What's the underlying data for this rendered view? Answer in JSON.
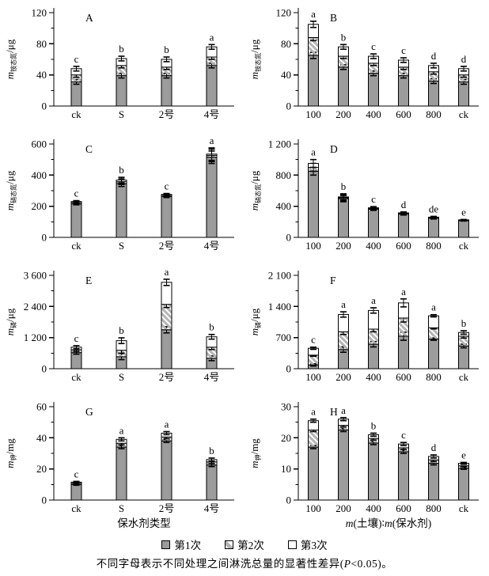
{
  "figure": {
    "colors": {
      "bar_fill": "#9c9c9c",
      "hatch_stripe": "#b4b4b4",
      "axis": "#000000",
      "background": "#ffffff"
    },
    "legend": [
      {
        "label": "第1次",
        "swatch": "solid-gray"
      },
      {
        "label": "第2次",
        "swatch": "hatched"
      },
      {
        "label": "第3次",
        "swatch": "open-white"
      }
    ],
    "caption": {
      "pre": "不同字母表示不同处理之间淋洗总量的显著性差异(",
      "italic": "P",
      "post": "<0.05)。"
    }
  },
  "chart_data": [
    {
      "id": "A",
      "type": "bar",
      "stacked": true,
      "ylabel": {
        "main": "m",
        "sub": "铵态氮",
        "unit": "/μg"
      },
      "ylim": [
        0,
        120
      ],
      "yticks": [
        {
          "v": 0,
          "label": "0"
        },
        {
          "v": 40,
          "label": "40"
        },
        {
          "v": 80,
          "label": "80"
        },
        {
          "v": 120,
          "label": "120"
        }
      ],
      "categories": [
        "ck",
        "S",
        "2号",
        "4号"
      ],
      "series": [
        {
          "name": "第1次",
          "values": [
            31,
            39,
            39,
            52
          ]
        },
        {
          "name": "第2次",
          "values": [
            9,
            13,
            11,
            11
          ]
        },
        {
          "name": "第3次",
          "values": [
            8,
            9,
            10,
            13
          ]
        }
      ],
      "totals": [
        48,
        61,
        60,
        76
      ],
      "letters": [
        "c",
        "b",
        "b",
        "a"
      ],
      "err": [
        3,
        3,
        3,
        3
      ],
      "xlabel": null
    },
    {
      "id": "B",
      "type": "bar",
      "stacked": true,
      "ylabel": {
        "main": "m",
        "sub": "铵态氮",
        "unit": "/μg"
      },
      "ylim": [
        0,
        120
      ],
      "yticks": [
        {
          "v": 0,
          "label": "0"
        },
        {
          "v": 40,
          "label": "40"
        },
        {
          "v": 80,
          "label": "80"
        },
        {
          "v": 120,
          "label": "120"
        }
      ],
      "categories": [
        "100",
        "200",
        "400",
        "600",
        "800",
        "ck"
      ],
      "series": [
        {
          "name": "第1次",
          "values": [
            65,
            50,
            42,
            39,
            32,
            31
          ]
        },
        {
          "name": "第2次",
          "values": [
            23,
            14,
            13,
            11,
            12,
            9
          ]
        },
        {
          "name": "第3次",
          "values": [
            17,
            12,
            9,
            9,
            8,
            8
          ]
        }
      ],
      "totals": [
        105,
        76,
        64,
        59,
        52,
        48
      ],
      "letters": [
        "a",
        "b",
        "c",
        "c",
        "d",
        "d"
      ],
      "err": [
        4,
        3,
        3,
        3,
        3,
        3
      ],
      "xlabel": null
    },
    {
      "id": "C",
      "type": "bar",
      "stacked": true,
      "ylabel": {
        "main": "m",
        "sub": "硝态氮",
        "unit": "/μg"
      },
      "ylim": [
        0,
        600
      ],
      "yticks": [
        {
          "v": 0,
          "label": "0"
        },
        {
          "v": 200,
          "label": "200"
        },
        {
          "v": 400,
          "label": "400"
        },
        {
          "v": 600,
          "label": "600"
        }
      ],
      "categories": [
        "ck",
        "S",
        "2号",
        "4号"
      ],
      "series": [
        {
          "name": "第1次",
          "values": [
            215,
            345,
            262,
            515
          ]
        },
        {
          "name": "第2次",
          "values": [
            9,
            13,
            8,
            12
          ]
        },
        {
          "name": "第3次",
          "values": [
            6,
            10,
            6,
            8
          ]
        }
      ],
      "totals": [
        230,
        368,
        276,
        535
      ],
      "letters": [
        "c",
        "b",
        "c",
        "a"
      ],
      "err": [
        6,
        18,
        6,
        40
      ],
      "xlabel": null
    },
    {
      "id": "D",
      "type": "bar",
      "stacked": true,
      "ylabel": {
        "main": "m",
        "sub": "硝态氮",
        "unit": "/μg"
      },
      "ylim": [
        0,
        1200
      ],
      "yticks": [
        {
          "v": 0,
          "label": "0"
        },
        {
          "v": 400,
          "label": "400"
        },
        {
          "v": 800,
          "label": "800"
        },
        {
          "v": 1200,
          "label": "1 200"
        }
      ],
      "categories": [
        "100",
        "200",
        "400",
        "600",
        "800",
        "ck"
      ],
      "series": [
        {
          "name": "第1次",
          "values": [
            850,
            498,
            362,
            299,
            246,
            215
          ]
        },
        {
          "name": "第2次",
          "values": [
            50,
            12,
            10,
            9,
            8,
            6
          ]
        },
        {
          "name": "第3次",
          "values": [
            50,
            10,
            8,
            7,
            6,
            4
          ]
        }
      ],
      "totals": [
        950,
        520,
        380,
        315,
        260,
        225
      ],
      "letters": [
        "a",
        "b",
        "c",
        "d",
        "de",
        "e"
      ],
      "err": [
        50,
        40,
        15,
        12,
        10,
        5
      ],
      "xlabel": null
    },
    {
      "id": "E",
      "type": "bar",
      "stacked": true,
      "ylabel": {
        "main": "m",
        "sub": "磷",
        "unit": "/μg"
      },
      "ylim": [
        0,
        3600
      ],
      "yticks": [
        {
          "v": 0,
          "label": "0"
        },
        {
          "v": 1200,
          "label": "1 200"
        },
        {
          "v": 2400,
          "label": "2 400"
        },
        {
          "v": 3600,
          "label": "3 600"
        }
      ],
      "categories": [
        "ck",
        "S",
        "2号",
        "4号"
      ],
      "series": [
        {
          "name": "第1次",
          "values": [
            620,
            460,
            1500,
            400
          ]
        },
        {
          "name": "第2次",
          "values": [
            110,
            250,
            980,
            430
          ]
        },
        {
          "name": "第3次",
          "values": [
            100,
            370,
            850,
            400
          ]
        }
      ],
      "totals": [
        830,
        1080,
        3330,
        1230
      ],
      "letters": [
        "c",
        "b",
        "a",
        "b"
      ],
      "err": [
        60,
        110,
        120,
        90
      ],
      "xlabel": null
    },
    {
      "id": "F",
      "type": "bar",
      "stacked": true,
      "ylabel": {
        "main": "m",
        "sub": "磷",
        "unit": "/μg"
      },
      "ylim": [
        0,
        2100
      ],
      "yticks": [
        {
          "v": 0,
          "label": "0"
        },
        {
          "v": 700,
          "label": "700"
        },
        {
          "v": 1400,
          "label": "1 400"
        },
        {
          "v": 2100,
          "label": "2 100"
        }
      ],
      "categories": [
        "100",
        "200",
        "400",
        "600",
        "800",
        "ck"
      ],
      "series": [
        {
          "name": "第1次",
          "values": [
            85,
            430,
            550,
            730,
            665,
            510
          ]
        },
        {
          "name": "第2次",
          "values": [
            220,
            400,
            340,
            410,
            255,
            220
          ]
        },
        {
          "name": "第3次",
          "values": [
            155,
            390,
            420,
            340,
            270,
            85
          ]
        }
      ],
      "totals": [
        460,
        1220,
        1310,
        1480,
        1190,
        815
      ],
      "letters": [
        "c",
        "a",
        "a",
        "a",
        "a",
        "b"
      ],
      "err": [
        25,
        60,
        60,
        90,
        25,
        40
      ],
      "xlabel": null
    },
    {
      "id": "G",
      "type": "bar",
      "stacked": true,
      "ylabel": {
        "main": "m",
        "sub": "钾",
        "unit": "/mg"
      },
      "ylim": [
        0,
        60
      ],
      "yticks": [
        {
          "v": 0,
          "label": "0"
        },
        {
          "v": 20,
          "label": "20"
        },
        {
          "v": 40,
          "label": "40"
        },
        {
          "v": 60,
          "label": "60"
        }
      ],
      "categories": [
        "ck",
        "S",
        "2号",
        "4号"
      ],
      "series": [
        {
          "name": "第1次",
          "values": [
            10,
            34,
            38,
            22.5
          ]
        },
        {
          "name": "第2次",
          "values": [
            0.8,
            2.5,
            2.5,
            2
          ]
        },
        {
          "name": "第3次",
          "values": [
            0.7,
            2.5,
            2.5,
            1.5
          ]
        }
      ],
      "totals": [
        11.5,
        39,
        43,
        26
      ],
      "letters": [
        "c",
        "a",
        "a",
        "b"
      ],
      "err": [
        0.5,
        1,
        1,
        1
      ],
      "xlabel": [
        {
          "t": "保水剂类型",
          "i": false
        }
      ]
    },
    {
      "id": "H",
      "type": "bar",
      "stacked": true,
      "ylabel": {
        "main": "m",
        "sub": "钾",
        "unit": "/mg"
      },
      "ylim": [
        0,
        30
      ],
      "yticks": [
        {
          "v": 0,
          "label": "0"
        },
        {
          "v": 10,
          "label": "10"
        },
        {
          "v": 20,
          "label": "20"
        },
        {
          "v": 30,
          "label": "30"
        }
      ],
      "categories": [
        "100",
        "200",
        "400",
        "600",
        "800",
        "ck"
      ],
      "series": [
        {
          "name": "第1次",
          "values": [
            17,
            22.5,
            18.3,
            15.5,
            11.8,
            10.2
          ]
        },
        {
          "name": "第2次",
          "values": [
            5.5,
            1.5,
            1.5,
            1.3,
            1.1,
            0.8
          ]
        },
        {
          "name": "第3次",
          "values": [
            3,
            2,
            1.2,
            1.2,
            1.1,
            0.8
          ]
        }
      ],
      "totals": [
        25.5,
        26,
        21,
        18,
        14,
        11.8
      ],
      "letters": [
        "a",
        "a",
        "b",
        "c",
        "d",
        "e"
      ],
      "err": [
        0.5,
        0.5,
        0.5,
        0.5,
        0.5,
        0.3
      ],
      "xlabel": [
        {
          "t": "m",
          "i": true
        },
        {
          "t": "(土壤)∶",
          "i": false
        },
        {
          "t": "m",
          "i": true
        },
        {
          "t": "(保水剂)",
          "i": false
        }
      ]
    }
  ]
}
